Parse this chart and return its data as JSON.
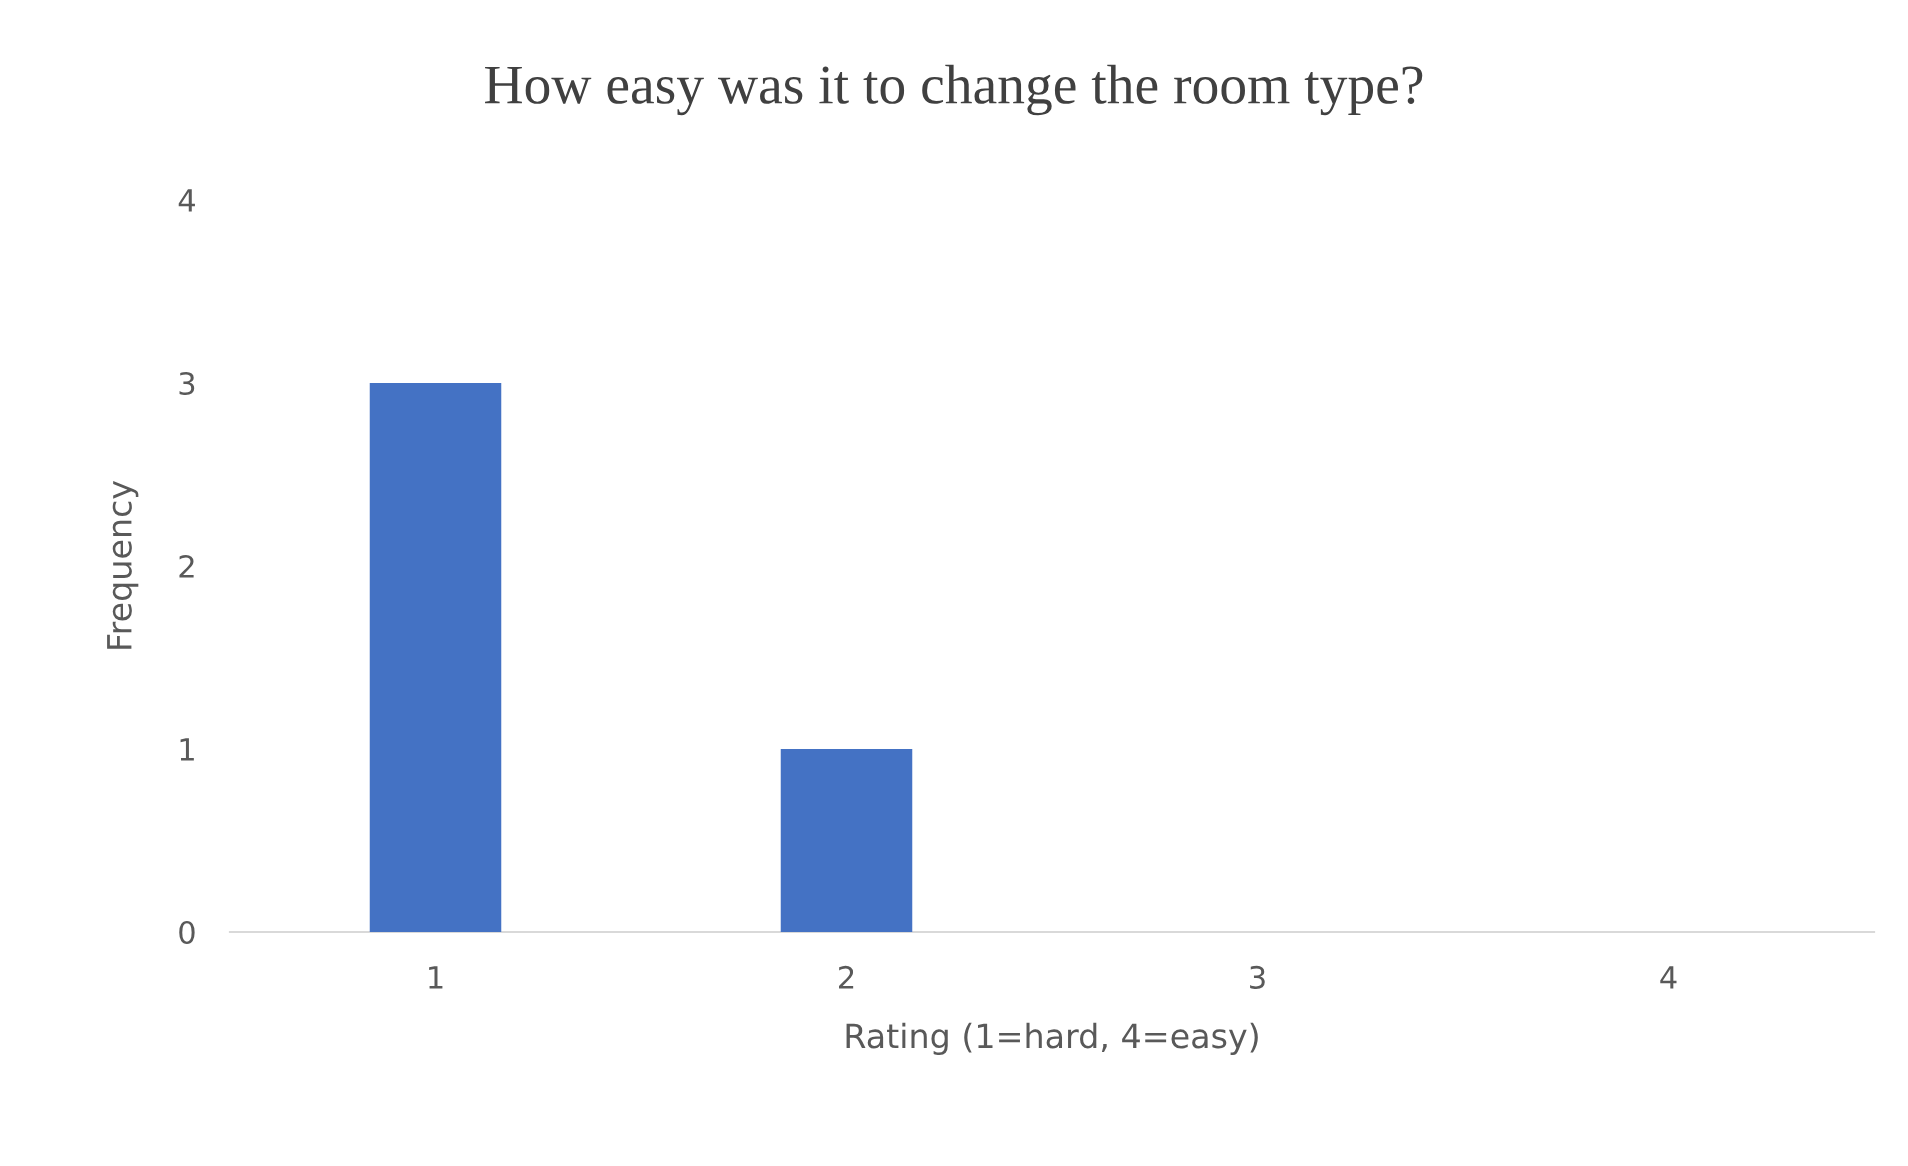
{
  "chart_data": {
    "type": "bar",
    "title": "How easy was it to change the room type?",
    "xlabel": "Rating (1=hard, 4=easy)",
    "ylabel": "Frequency",
    "categories": [
      "1",
      "2",
      "3",
      "4"
    ],
    "values": [
      3,
      1,
      0,
      0
    ],
    "color": "#4472c4",
    "ylim": [
      0,
      4
    ],
    "yticks": [
      0,
      1,
      2,
      3,
      4
    ],
    "grid": false
  }
}
